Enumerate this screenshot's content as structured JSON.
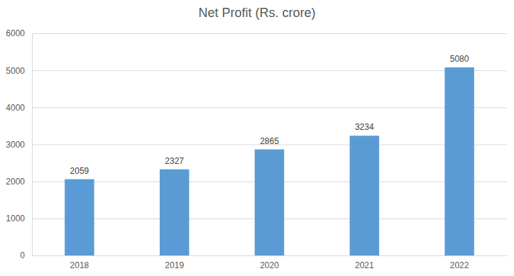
{
  "chart_data": {
    "type": "bar",
    "title": "Net Profit (Rs. crore)",
    "categories": [
      "2018",
      "2019",
      "2020",
      "2021",
      "2022"
    ],
    "values": [
      2059,
      2327,
      2865,
      3234,
      5080
    ],
    "color": "#5b9bd5",
    "ylim": [
      0,
      6000
    ],
    "yticks": [
      0,
      1000,
      2000,
      3000,
      4000,
      5000,
      6000
    ],
    "grid": true,
    "data_labels": true
  }
}
